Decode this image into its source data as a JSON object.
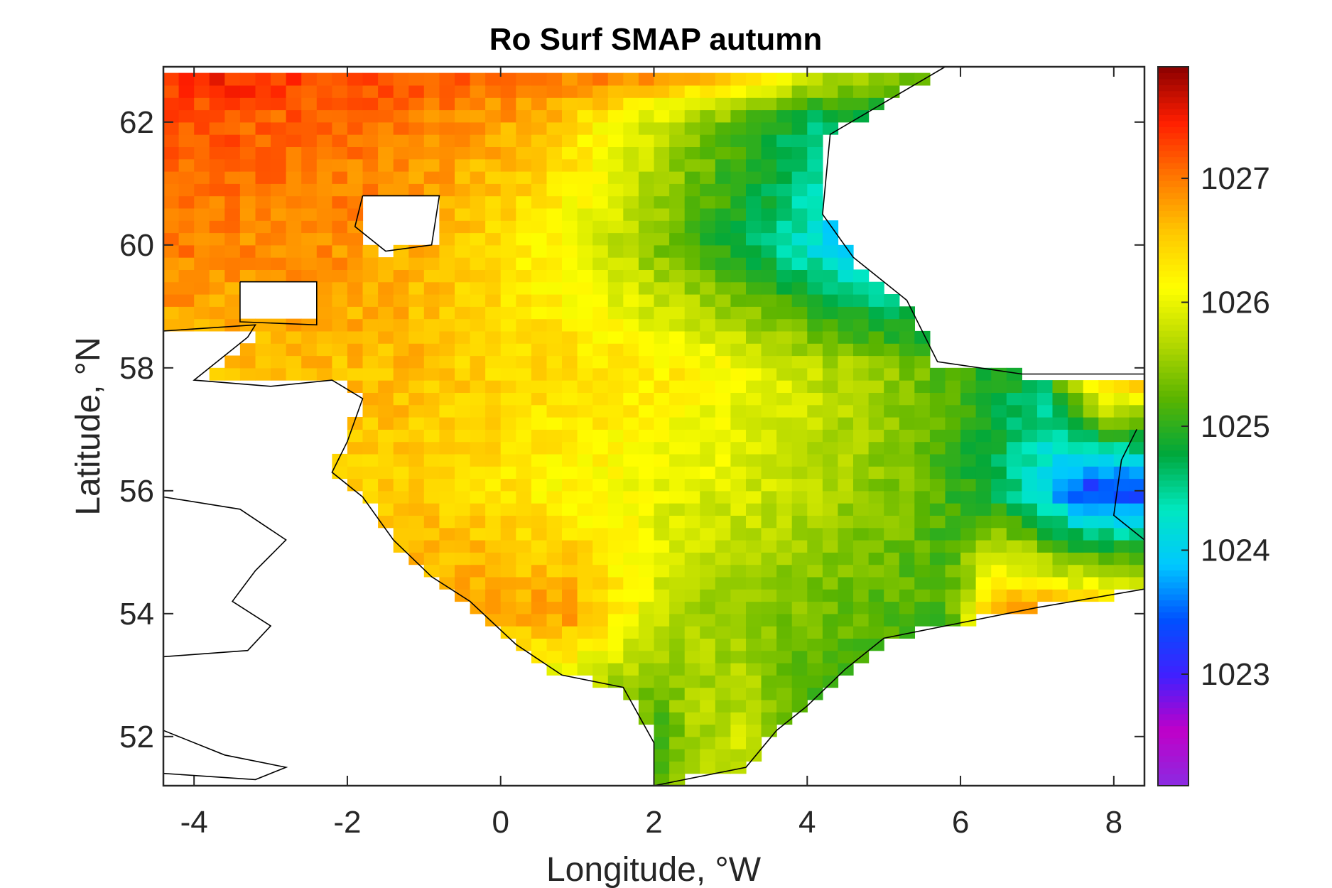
{
  "chart_data": {
    "type": "heatmap",
    "title": "Ro Surf SMAP autumn",
    "xlabel": "Longitude, °W",
    "ylabel": "Latitude, °N",
    "xlim": [
      -4.4,
      8.4
    ],
    "ylim": [
      51.2,
      62.9
    ],
    "xticks": [
      -4,
      -2,
      0,
      2,
      4,
      6,
      8
    ],
    "yticks": [
      52,
      54,
      56,
      58,
      60,
      62
    ],
    "colorbar": {
      "range": [
        1022.1,
        1027.9
      ],
      "ticks": [
        1023,
        1024,
        1025,
        1026,
        1027
      ],
      "colormap": [
        "#8a2be2",
        "#c000c8",
        "#4020ff",
        "#0050ff",
        "#00c8ff",
        "#00e8c0",
        "#00a83c",
        "#5ab400",
        "#b4d800",
        "#ffff00",
        "#ffc800",
        "#ff7800",
        "#ff1e00",
        "#8b0000"
      ]
    },
    "grid": false,
    "cell_size_deg": [
      0.2,
      0.2
    ],
    "sea_value_rows_north_to_south": [
      {
        "lat": 62.7,
        "lon": [
          -4.2,
          5.7
        ],
        "values": [
          1027.3,
          1027.4,
          1027.4,
          1027.3,
          1027.3,
          1027.3,
          1027.2,
          1027.2,
          1027.1,
          1027.1,
          1027.0,
          1027.0,
          1026.9,
          1026.9,
          1026.8,
          1026.7,
          1026.6,
          1026.5,
          1026.2,
          1025.9,
          1025.6,
          1025.5,
          1025.3,
          1025.0
        ]
      },
      {
        "lat": 62.0,
        "lon": [
          -4.2,
          4.1
        ],
        "values": [
          1027.2,
          1027.2,
          1027.1,
          1027.1,
          1027.0,
          1026.9,
          1026.8,
          1026.6,
          1026.2,
          1025.8,
          1025.4,
          1025.0,
          1024.6
        ]
      },
      {
        "lat": 60.0,
        "lon": [
          -4.2,
          4.5
        ],
        "values": [
          1027.0,
          1026.9,
          1026.9,
          1026.8,
          1026.6,
          1026.3,
          1026.0,
          1025.5,
          1025.0,
          1024.5,
          1023.8
        ]
      },
      {
        "lat": 58.0,
        "lon": [
          -1.2,
          7.8
        ],
        "values": [
          1026.6,
          1026.5,
          1026.4,
          1026.4,
          1026.3,
          1026.2,
          1026.0,
          1025.8,
          1025.6,
          1025.3,
          1025.0,
          1024.7,
          1027.0
        ]
      },
      {
        "lat": 56.0,
        "lon": [
          -1.0,
          7.6
        ],
        "values": [
          1026.5,
          1026.4,
          1026.2,
          1026.1,
          1026.0,
          1025.9,
          1025.8,
          1025.6,
          1025.4,
          1025.0,
          1024.4,
          1023.2
        ]
      },
      {
        "lat": 54.0,
        "lon": [
          0.9,
          6.5
        ],
        "values": [
          1026.8,
          1026.2,
          1025.7,
          1025.5,
          1025.4,
          1025.3,
          1025.2,
          1025.1,
          1026.9
        ]
      },
      {
        "lat": 52.0,
        "lon": [
          2.1,
          3.9
        ],
        "values": [
          1025.1,
          1025.6,
          1025.7,
          1025.8,
          1025.5,
          1025.0
        ]
      }
    ]
  }
}
